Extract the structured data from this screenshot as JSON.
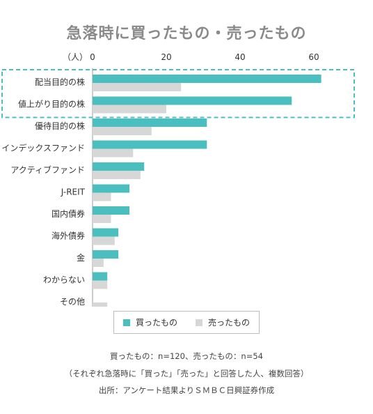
{
  "title": "急落時に買ったもの・売ったもの",
  "chart_data": {
    "type": "bar",
    "orientation": "horizontal",
    "unit_label": "（人）",
    "xlim": [
      0,
      80
    ],
    "ticks": [
      "0",
      "20",
      "40",
      "60",
      "80"
    ],
    "categories": [
      "配当目的の株",
      "値上がり目的の株",
      "優待目的の株",
      "インデックスファンド",
      "アクティブファンド",
      "J-REIT",
      "国内債券",
      "海外債券",
      "金",
      "わからない",
      "その他"
    ],
    "series": [
      {
        "name": "買ったもの",
        "color": "#4bbfbf",
        "values": [
          62,
          54,
          31,
          31,
          14,
          10,
          10,
          7,
          7,
          4,
          0
        ]
      },
      {
        "name": "売ったもの",
        "color": "#d7d7d7",
        "values": [
          24,
          20,
          16,
          11,
          13,
          5,
          5,
          6,
          3,
          4,
          4
        ]
      }
    ],
    "highlight": {
      "categories": [
        "配当目的の株",
        "値上がり目的の株"
      ],
      "color": "#4bbfbf",
      "style": "dashed"
    }
  },
  "notes": [
    "買ったもの：n=120、売ったもの：n=54",
    "（それぞれ急落時に「買った」「売った」と回答した人、複数回答）",
    "出所：アンケート結果よりＳＭＢＣ日興証券作成"
  ]
}
